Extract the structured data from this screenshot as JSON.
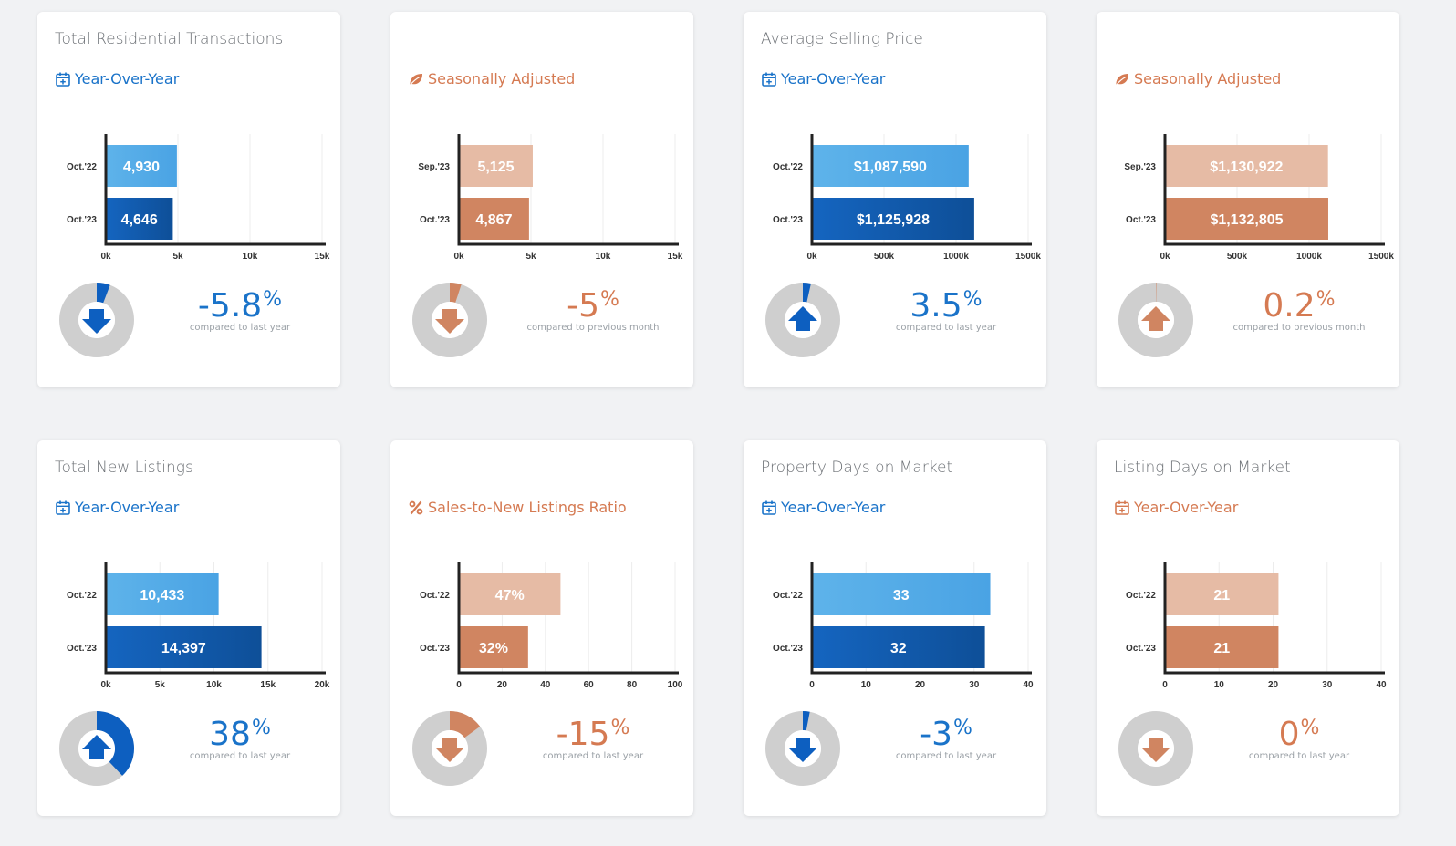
{
  "cards": [
    {
      "title": "Total Residential Transactions",
      "subtitle": "Year-Over-Year",
      "icon": "calendar-icon",
      "theme": "blue",
      "pct": "-5.8",
      "compare": "compared to last year",
      "arrow": "down",
      "donut_fraction": 0.058
    },
    {
      "title": "",
      "subtitle": "Seasonally Adjusted",
      "icon": "leaf-icon",
      "theme": "orange",
      "pct": "-5",
      "compare": "compared to previous month",
      "arrow": "down",
      "donut_fraction": 0.05
    },
    {
      "title": "Average Selling Price",
      "subtitle": "Year-Over-Year",
      "icon": "calendar-icon",
      "theme": "blue",
      "pct": "3.5",
      "compare": "compared to last year",
      "arrow": "up",
      "donut_fraction": 0.035
    },
    {
      "title": "",
      "subtitle": "Seasonally Adjusted",
      "icon": "leaf-icon",
      "theme": "orange",
      "pct": "0.2",
      "compare": "compared to previous month",
      "arrow": "up",
      "donut_fraction": 0.002
    },
    {
      "title": "Total New Listings",
      "subtitle": "Year-Over-Year",
      "icon": "calendar-icon",
      "theme": "blue",
      "pct": "38",
      "compare": "compared to last year",
      "arrow": "up",
      "donut_fraction": 0.38
    },
    {
      "title": "",
      "subtitle": "Sales-to-New Listings Ratio",
      "icon": "percent-icon",
      "theme": "orange",
      "pct": "-15",
      "compare": "compared to last year",
      "arrow": "down",
      "donut_fraction": 0.15
    },
    {
      "title": "Property Days on Market",
      "subtitle": "Year-Over-Year",
      "icon": "calendar-icon",
      "theme": "blue",
      "pct": "-3",
      "compare": "compared to last year",
      "arrow": "down",
      "donut_fraction": 0.03
    },
    {
      "title": "Listing Days on Market",
      "subtitle": "Year-Over-Year",
      "icon": "calendar-icon",
      "theme": "orange",
      "pct": "0",
      "compare": "compared to last year",
      "arrow": "down",
      "donut_fraction": 0.0
    }
  ],
  "pct_suffix": "%",
  "colors": {
    "blue_light": "#5eb3ea",
    "blue_dark": "#0e4f98",
    "blue_bar2": "#1565c0",
    "orange_light": "#e6bba5",
    "orange_dark": "#d08561",
    "blue_text": "#1a73c9",
    "orange_text": "#d57a52",
    "donut_gray": "#cfcfcf"
  },
  "chart_data": [
    {
      "type": "bar",
      "orientation": "horizontal",
      "categories": [
        "Oct.'22",
        "Oct.'23"
      ],
      "values": [
        4930,
        4646
      ],
      "labels": [
        "4,930",
        "4,646"
      ],
      "ticks": [
        "0k",
        "5k",
        "10k",
        "15k"
      ],
      "tick_values": [
        0,
        5000,
        10000,
        15000
      ],
      "xlim": [
        0,
        15000
      ]
    },
    {
      "type": "bar",
      "orientation": "horizontal",
      "categories": [
        "Sep.'23",
        "Oct.'23"
      ],
      "values": [
        5125,
        4867
      ],
      "labels": [
        "5,125",
        "4,867"
      ],
      "ticks": [
        "0k",
        "5k",
        "10k",
        "15k"
      ],
      "tick_values": [
        0,
        5000,
        10000,
        15000
      ],
      "xlim": [
        0,
        15000
      ]
    },
    {
      "type": "bar",
      "orientation": "horizontal",
      "categories": [
        "Oct.'22",
        "Oct.'23"
      ],
      "values": [
        1087590,
        1125928
      ],
      "labels": [
        "$1,087,590",
        "$1,125,928"
      ],
      "ticks": [
        "0k",
        "500k",
        "1000k",
        "1500k"
      ],
      "tick_values": [
        0,
        500000,
        1000000,
        1500000
      ],
      "xlim": [
        0,
        1500000
      ]
    },
    {
      "type": "bar",
      "orientation": "horizontal",
      "categories": [
        "Sep.'23",
        "Oct.'23"
      ],
      "values": [
        1130922,
        1132805
      ],
      "labels": [
        "$1,130,922",
        "$1,132,805"
      ],
      "ticks": [
        "0k",
        "500k",
        "1000k",
        "1500k"
      ],
      "tick_values": [
        0,
        500000,
        1000000,
        1500000
      ],
      "xlim": [
        0,
        1500000
      ]
    },
    {
      "type": "bar",
      "orientation": "horizontal",
      "categories": [
        "Oct.'22",
        "Oct.'23"
      ],
      "values": [
        10433,
        14397
      ],
      "labels": [
        "10,433",
        "14,397"
      ],
      "ticks": [
        "0k",
        "5k",
        "10k",
        "15k",
        "20k"
      ],
      "tick_values": [
        0,
        5000,
        10000,
        15000,
        20000
      ],
      "xlim": [
        0,
        20000
      ]
    },
    {
      "type": "bar",
      "orientation": "horizontal",
      "categories": [
        "Oct.'22",
        "Oct.'23"
      ],
      "values": [
        47,
        32
      ],
      "labels": [
        "47%",
        "32%"
      ],
      "ticks": [
        "0",
        "20",
        "40",
        "60",
        "80",
        "100"
      ],
      "tick_values": [
        0,
        20,
        40,
        60,
        80,
        100
      ],
      "xlim": [
        0,
        100
      ]
    },
    {
      "type": "bar",
      "orientation": "horizontal",
      "categories": [
        "Oct.'22",
        "Oct.'23"
      ],
      "values": [
        33,
        32
      ],
      "labels": [
        "33",
        "32"
      ],
      "ticks": [
        "0",
        "10",
        "20",
        "30",
        "40"
      ],
      "tick_values": [
        0,
        10,
        20,
        30,
        40
      ],
      "xlim": [
        0,
        40
      ]
    },
    {
      "type": "bar",
      "orientation": "horizontal",
      "categories": [
        "Oct.'22",
        "Oct.'23"
      ],
      "values": [
        21,
        21
      ],
      "labels": [
        "21",
        "21"
      ],
      "ticks": [
        "0",
        "10",
        "20",
        "30",
        "40"
      ],
      "tick_values": [
        0,
        10,
        20,
        30,
        40
      ],
      "xlim": [
        0,
        40
      ]
    }
  ]
}
